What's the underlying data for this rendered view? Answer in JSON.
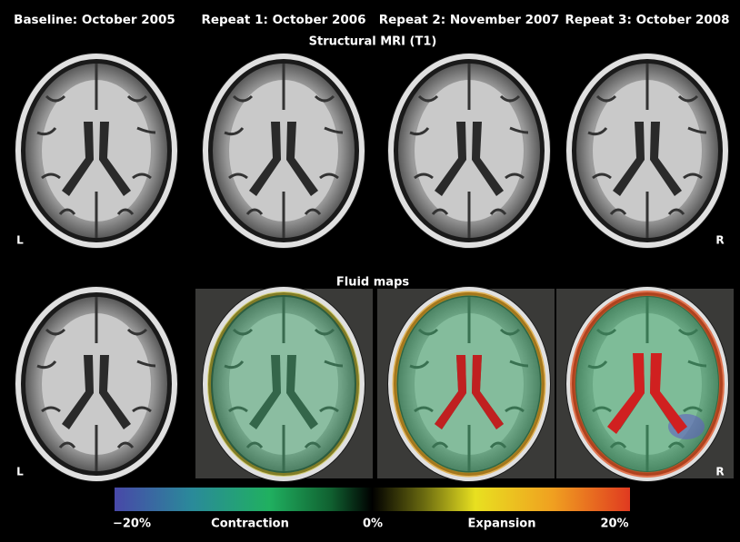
{
  "header": {
    "columns": [
      "Baseline: October 2005",
      "Repeat 1: October 2006",
      "Repeat 2: November 2007",
      "Repeat 3: October 2008"
    ]
  },
  "rows": [
    {
      "title": "Structural MRI (T1)",
      "left": "L",
      "right": "R"
    },
    {
      "title": "Fluid maps",
      "left": "L",
      "right": "R"
    }
  ],
  "colorbar": {
    "ticks": [
      "−20%",
      "0%",
      "20%"
    ],
    "labels": [
      "Contraction",
      "Expansion"
    ]
  }
}
